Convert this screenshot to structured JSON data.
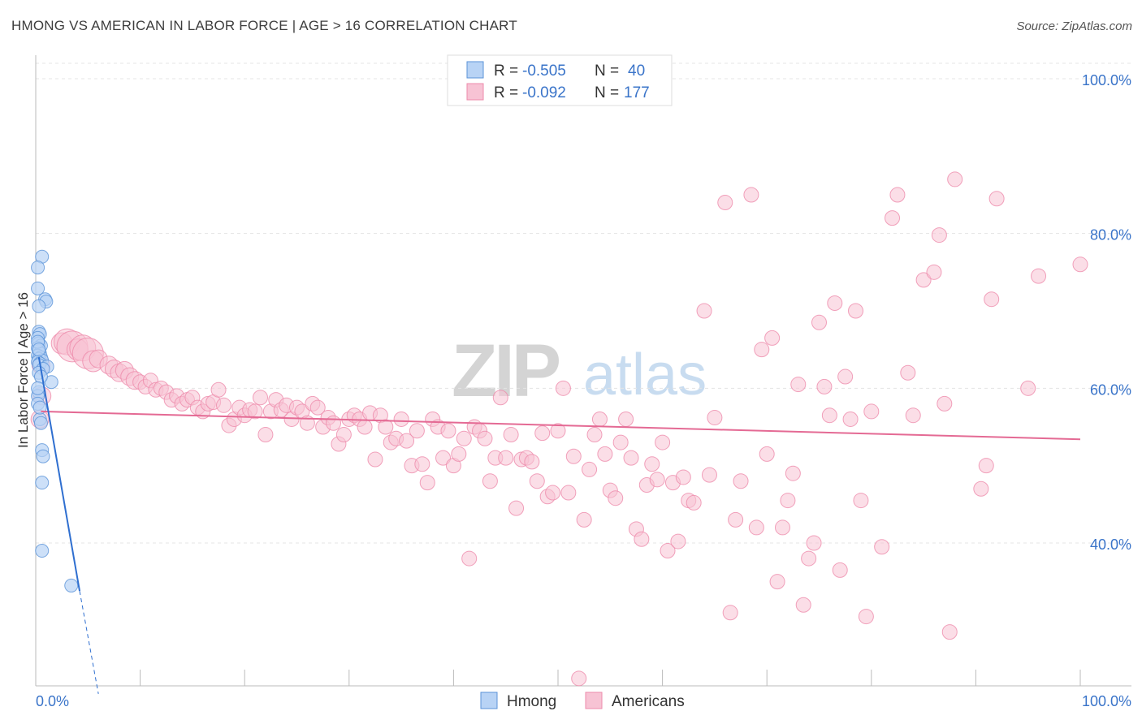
{
  "title": "HMONG VS AMERICAN IN LABOR FORCE | AGE > 16 CORRELATION CHART",
  "source": "Source: ZipAtlas.com",
  "watermark": {
    "zip": "ZIP",
    "atlas": "atlas"
  },
  "legend": {
    "r_label": "R =",
    "n_label": "N =",
    "series": [
      {
        "r_value": "-0.505",
        "n_value": "40"
      },
      {
        "r_value": "-0.092",
        "n_value": "177"
      }
    ]
  },
  "bottom_legend": [
    "Hmong",
    "Americans"
  ],
  "chart_data": {
    "type": "scatter",
    "title": "HMONG VS AMERICAN IN LABOR FORCE | AGE > 16 CORRELATION CHART",
    "xlabel": "",
    "ylabel": "In Labor Force | Age > 16",
    "xlim": [
      0,
      100
    ],
    "ylim": [
      20,
      103
    ],
    "x_tick_labels": [
      "0.0%",
      "100.0%"
    ],
    "y_ticks": [
      40,
      60,
      80,
      100
    ],
    "y_tick_labels": [
      "40.0%",
      "60.0%",
      "80.0%",
      "100.0%"
    ],
    "colors": {
      "hmong": "#5b93d8",
      "american": "#ee8bab",
      "hmong_fill": "#b8d3f5",
      "american_fill": "#f7c3d4",
      "accent": "#3a74c9"
    },
    "series": [
      {
        "name": "Hmong",
        "r": -0.505,
        "n": 40,
        "trend": {
          "x": [
            0.3,
            4.2
          ],
          "y": [
            64,
            33.8
          ]
        },
        "trend_extension": {
          "x": [
            4.2,
            6.0
          ],
          "y": [
            33.8,
            20.5
          ]
        },
        "points": [
          [
            0.6,
            77.0
          ],
          [
            0.2,
            75.6
          ],
          [
            0.2,
            72.9
          ],
          [
            0.9,
            71.5
          ],
          [
            1.0,
            71.2
          ],
          [
            0.3,
            70.6
          ],
          [
            0.3,
            67.3
          ],
          [
            0.4,
            67.0
          ],
          [
            0.2,
            66.5
          ],
          [
            0.3,
            65.8
          ],
          [
            0.5,
            65.5
          ],
          [
            0.2,
            65.2
          ],
          [
            0.3,
            64.8
          ],
          [
            0.4,
            64.5
          ],
          [
            0.2,
            64.2
          ],
          [
            0.5,
            64.0
          ],
          [
            0.3,
            63.8
          ],
          [
            0.6,
            63.6
          ],
          [
            0.2,
            63.4
          ],
          [
            0.4,
            63.2
          ],
          [
            0.3,
            63.0
          ],
          [
            1.1,
            62.8
          ],
          [
            0.7,
            62.5
          ],
          [
            1.5,
            60.8
          ],
          [
            0.3,
            59.5
          ],
          [
            0.2,
            59.0
          ],
          [
            0.4,
            56.0
          ],
          [
            0.5,
            55.5
          ],
          [
            0.6,
            52.0
          ],
          [
            0.7,
            51.2
          ],
          [
            0.6,
            47.8
          ],
          [
            0.6,
            39.0
          ],
          [
            3.4,
            34.5
          ],
          [
            0.2,
            66.0
          ],
          [
            0.3,
            62.0
          ],
          [
            0.5,
            61.5
          ],
          [
            0.2,
            58.0
          ],
          [
            0.4,
            57.5
          ],
          [
            0.3,
            65.0
          ],
          [
            0.2,
            60.0
          ]
        ]
      },
      {
        "name": "Americans",
        "r": -0.092,
        "n": 177,
        "trend": {
          "x": [
            0.5,
            100
          ],
          "y": [
            57.0,
            53.4
          ]
        },
        "points": [
          [
            0.5,
            63.0
          ],
          [
            0.6,
            59.0
          ],
          [
            0.4,
            56.0
          ],
          [
            2.5,
            65.8
          ],
          [
            3.0,
            66.0
          ],
          [
            3.5,
            65.4
          ],
          [
            4.0,
            65.0
          ],
          [
            4.5,
            65.2
          ],
          [
            5.0,
            64.5
          ],
          [
            5.5,
            63.5
          ],
          [
            6.0,
            63.8
          ],
          [
            7.0,
            63.0
          ],
          [
            7.5,
            62.5
          ],
          [
            8.0,
            62.0
          ],
          [
            8.5,
            62.3
          ],
          [
            9.0,
            61.5
          ],
          [
            9.5,
            61.0
          ],
          [
            10.0,
            60.8
          ],
          [
            10.5,
            60.2
          ],
          [
            11.0,
            61.0
          ],
          [
            11.5,
            59.8
          ],
          [
            12.0,
            60.0
          ],
          [
            12.5,
            59.5
          ],
          [
            13.0,
            58.5
          ],
          [
            13.5,
            59.0
          ],
          [
            14.0,
            58.0
          ],
          [
            14.5,
            58.5
          ],
          [
            15.0,
            58.8
          ],
          [
            15.5,
            57.5
          ],
          [
            16.0,
            57.0
          ],
          [
            16.5,
            58.0
          ],
          [
            17.0,
            58.2
          ],
          [
            17.5,
            59.8
          ],
          [
            18.0,
            57.8
          ],
          [
            18.5,
            55.2
          ],
          [
            19.0,
            56.0
          ],
          [
            19.5,
            57.5
          ],
          [
            20.0,
            56.5
          ],
          [
            20.5,
            57.2
          ],
          [
            21.0,
            57.0
          ],
          [
            21.5,
            58.8
          ],
          [
            22.0,
            54.0
          ],
          [
            22.5,
            57.0
          ],
          [
            23.0,
            58.5
          ],
          [
            23.5,
            57.2
          ],
          [
            24.0,
            57.8
          ],
          [
            24.5,
            56.0
          ],
          [
            25.0,
            57.5
          ],
          [
            25.5,
            57.0
          ],
          [
            26.0,
            55.5
          ],
          [
            26.5,
            58.0
          ],
          [
            27.0,
            57.5
          ],
          [
            27.5,
            55.0
          ],
          [
            28.0,
            56.2
          ],
          [
            28.5,
            55.5
          ],
          [
            29.0,
            52.8
          ],
          [
            29.5,
            54.0
          ],
          [
            30.0,
            56.0
          ],
          [
            30.5,
            56.5
          ],
          [
            31.0,
            56.0
          ],
          [
            31.5,
            55.0
          ],
          [
            32.0,
            56.8
          ],
          [
            32.5,
            50.8
          ],
          [
            33.0,
            56.5
          ],
          [
            33.5,
            55.0
          ],
          [
            34.0,
            53.0
          ],
          [
            34.5,
            53.5
          ],
          [
            35.0,
            56.0
          ],
          [
            35.5,
            53.2
          ],
          [
            36.0,
            50.0
          ],
          [
            36.5,
            54.5
          ],
          [
            37.0,
            50.2
          ],
          [
            37.5,
            47.8
          ],
          [
            38.0,
            56.0
          ],
          [
            38.5,
            55.0
          ],
          [
            39.0,
            51.0
          ],
          [
            39.5,
            54.5
          ],
          [
            40.0,
            50.0
          ],
          [
            40.5,
            51.5
          ],
          [
            41.0,
            53.5
          ],
          [
            41.5,
            38.0
          ],
          [
            42.0,
            55.0
          ],
          [
            42.5,
            54.5
          ],
          [
            43.0,
            53.5
          ],
          [
            43.5,
            48.0
          ],
          [
            44.0,
            51.0
          ],
          [
            44.5,
            58.8
          ],
          [
            45.0,
            51.0
          ],
          [
            45.5,
            54.0
          ],
          [
            46.0,
            44.5
          ],
          [
            46.5,
            50.8
          ],
          [
            47.0,
            51.0
          ],
          [
            47.5,
            50.5
          ],
          [
            48.0,
            48.0
          ],
          [
            48.5,
            54.2
          ],
          [
            49.0,
            46.0
          ],
          [
            49.5,
            46.5
          ],
          [
            50.0,
            54.5
          ],
          [
            50.5,
            60.0
          ],
          [
            51.0,
            46.5
          ],
          [
            51.5,
            51.2
          ],
          [
            52.0,
            22.5
          ],
          [
            52.5,
            43.0
          ],
          [
            53.0,
            49.5
          ],
          [
            53.5,
            54.0
          ],
          [
            54.0,
            56.0
          ],
          [
            54.5,
            51.5
          ],
          [
            55.0,
            46.8
          ],
          [
            55.5,
            45.8
          ],
          [
            56.0,
            53.0
          ],
          [
            56.5,
            56.0
          ],
          [
            57.0,
            51.0
          ],
          [
            57.5,
            41.8
          ],
          [
            58.0,
            40.5
          ],
          [
            58.5,
            47.5
          ],
          [
            59.0,
            50.2
          ],
          [
            59.5,
            48.2
          ],
          [
            60.0,
            53.0
          ],
          [
            60.5,
            39.0
          ],
          [
            61.0,
            47.8
          ],
          [
            61.5,
            40.2
          ],
          [
            62.0,
            48.5
          ],
          [
            62.5,
            45.5
          ],
          [
            63.0,
            45.2
          ],
          [
            64.0,
            70.0
          ],
          [
            64.5,
            48.8
          ],
          [
            65.0,
            56.2
          ],
          [
            66.0,
            84.0
          ],
          [
            66.5,
            31.0
          ],
          [
            67.0,
            43.0
          ],
          [
            67.5,
            48.0
          ],
          [
            68.5,
            85.0
          ],
          [
            69.0,
            42.0
          ],
          [
            69.5,
            65.0
          ],
          [
            70.0,
            51.5
          ],
          [
            70.5,
            66.5
          ],
          [
            71.0,
            35.0
          ],
          [
            71.5,
            42.0
          ],
          [
            72.0,
            45.5
          ],
          [
            72.5,
            49.0
          ],
          [
            73.0,
            60.5
          ],
          [
            73.5,
            32.0
          ],
          [
            74.0,
            38.0
          ],
          [
            74.5,
            40.0
          ],
          [
            75.0,
            68.5
          ],
          [
            75.5,
            60.2
          ],
          [
            76.0,
            56.5
          ],
          [
            76.5,
            71.0
          ],
          [
            77.0,
            36.5
          ],
          [
            77.5,
            61.5
          ],
          [
            78.0,
            56.0
          ],
          [
            78.5,
            70.0
          ],
          [
            79.0,
            45.5
          ],
          [
            79.5,
            30.5
          ],
          [
            80.0,
            57.0
          ],
          [
            81.0,
            39.5
          ],
          [
            82.0,
            82.0
          ],
          [
            82.5,
            85.0
          ],
          [
            83.5,
            62.0
          ],
          [
            84.0,
            56.5
          ],
          [
            85.0,
            74.0
          ],
          [
            86.0,
            75.0
          ],
          [
            86.5,
            79.8
          ],
          [
            87.0,
            58.0
          ],
          [
            87.5,
            28.5
          ],
          [
            88.0,
            87.0
          ],
          [
            90.5,
            47.0
          ],
          [
            91.0,
            50.0
          ],
          [
            91.5,
            71.5
          ],
          [
            92.0,
            84.5
          ],
          [
            95.0,
            60.0
          ],
          [
            96.0,
            74.5
          ],
          [
            100.0,
            76.0
          ]
        ]
      }
    ]
  }
}
